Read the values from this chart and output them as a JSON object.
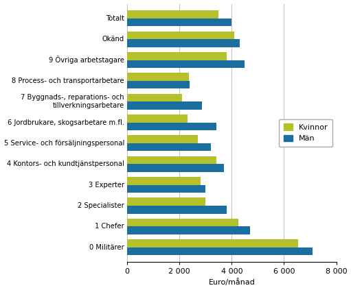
{
  "categories": [
    "0 Militärer",
    "1 Chefer",
    "2 Specialister",
    "3 Experter",
    "4 Kontors- och kundtjänstpersonal",
    "5 Service- och försäljningspersonal",
    "6 Jordbrukare, skogsarbetare m.fl.",
    "7 Byggnads-, reparations- och\ntillverkningsarbetare",
    "8 Process- och transportarbetare",
    "9 Övriga arbetstagare",
    "Okänd",
    "Totalt"
  ],
  "kvinnor": [
    6550,
    4250,
    3000,
    2800,
    3400,
    2700,
    2300,
    2100,
    2350,
    3800,
    4100,
    3500
  ],
  "man": [
    7100,
    4700,
    3800,
    3000,
    3700,
    3200,
    3400,
    2850,
    2400,
    4500,
    4300,
    4000
  ],
  "color_kvinnor": "#b5c12a",
  "color_man": "#1a6fa0",
  "xlabel": "Euro/månad",
  "legend_kvinnor": "Kvinnor",
  "legend_man": "Män",
  "xlim": [
    0,
    8000
  ],
  "xticks": [
    0,
    2000,
    4000,
    6000,
    8000
  ],
  "xtick_labels": [
    "0",
    "2 000",
    "4 000",
    "6 000",
    "8 000"
  ],
  "grid_color": "#c0c0c0",
  "bar_height": 0.38,
  "background_color": "#ffffff",
  "figwidth": 5.11,
  "figheight": 4.23,
  "dpi": 100
}
